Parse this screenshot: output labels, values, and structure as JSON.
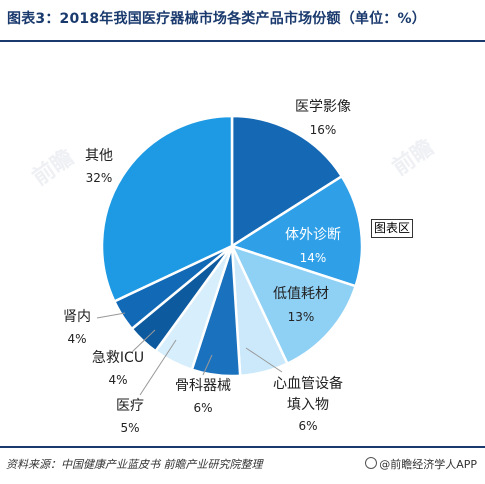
{
  "title": "图表3：2018年我国医疗器械市场各类产品市场份额（单位：%）",
  "badge": "图表区",
  "source": "资料来源：中国健康产业蓝皮书 前瞻产业研究院整理",
  "brand": "@前瞻经济学人APP",
  "colors": {
    "accent": "#1a3a6e"
  },
  "chart_data": {
    "type": "pie",
    "title": "图表3：2018年我国医疗器械市场各类产品市场份额（单位：%）",
    "slices": [
      {
        "name": "医学影像",
        "value": 16,
        "label": "16%",
        "color": "#1468b4"
      },
      {
        "name": "体外诊断",
        "value": 14,
        "label": "14%",
        "color": "#2f9fe8"
      },
      {
        "name": "低值耗材",
        "value": 13,
        "label": "13%",
        "color": "#8fd0f5"
      },
      {
        "name": "心血管设备填入物",
        "value": 6,
        "label": "6%",
        "color": "#cbe9fb"
      },
      {
        "name": "骨科器械",
        "value": 6,
        "label": "6%",
        "color": "#1a72be"
      },
      {
        "name": "医疗",
        "value": 5,
        "label": "5%",
        "color": "#d7eefc"
      },
      {
        "name": "急救ICU",
        "value": 4,
        "label": "4%",
        "color": "#0d5a9e"
      },
      {
        "name": "肾内",
        "value": 4,
        "label": "4%",
        "color": "#1269b6"
      },
      {
        "name": "其他",
        "value": 32,
        "label": "32%",
        "color": "#1d9ae3"
      }
    ]
  }
}
